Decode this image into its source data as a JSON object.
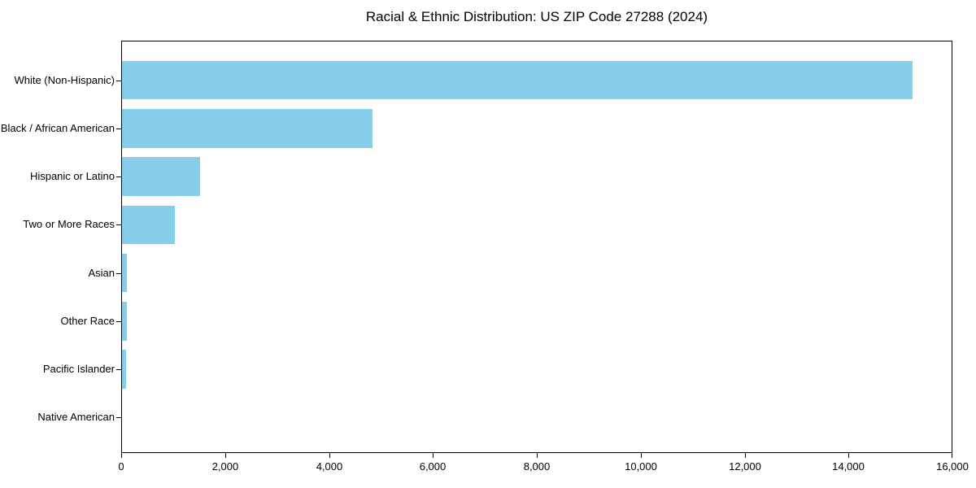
{
  "chart_data": {
    "type": "bar",
    "orientation": "horizontal",
    "title": "Racial & Ethnic Distribution: US ZIP Code 27288 (2024)",
    "categories": [
      "White (Non-Hispanic)",
      "Black / African American",
      "Hispanic or Latino",
      "Two or More Races",
      "Asian",
      "Other Race",
      "Pacific Islander",
      "Native American"
    ],
    "values": [
      15250,
      4830,
      1500,
      1020,
      95,
      95,
      75,
      0
    ],
    "xlabel": "",
    "ylabel": "",
    "xlim": [
      0,
      16000
    ],
    "x_ticks": [
      0,
      2000,
      4000,
      6000,
      8000,
      10000,
      12000,
      14000,
      16000
    ],
    "x_tick_labels": [
      "0",
      "2,000",
      "4,000",
      "6,000",
      "8,000",
      "10,000",
      "12,000",
      "14,000",
      "16,000"
    ],
    "bar_color": "#87CEEB",
    "frame_color": "#000000",
    "grid": false,
    "legend": null
  }
}
